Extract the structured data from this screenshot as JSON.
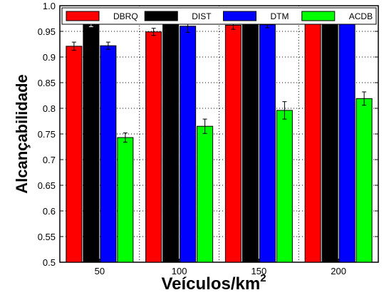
{
  "chart_data": {
    "type": "bar",
    "categories": [
      "50",
      "100",
      "150",
      "200"
    ],
    "series": [
      {
        "name": "DBRQ",
        "color": "#ff0000",
        "values": [
          0.921,
          0.949,
          0.962,
          0.974
        ],
        "errors": [
          0.008,
          0.007,
          0.008,
          0.008
        ]
      },
      {
        "name": "DIST",
        "color": "#000000",
        "values": [
          0.969,
          0.975,
          0.977,
          0.98
        ],
        "errors": [
          0.01,
          0.01,
          0.008,
          0.01
        ]
      },
      {
        "name": "DTM",
        "color": "#0000ff",
        "values": [
          0.922,
          0.96,
          0.963,
          0.981
        ],
        "errors": [
          0.007,
          0.012,
          0.006,
          0.01
        ]
      },
      {
        "name": "ACDB",
        "color": "#00ff00",
        "values": [
          0.743,
          0.765,
          0.796,
          0.819
        ],
        "errors": [
          0.009,
          0.014,
          0.017,
          0.013
        ]
      }
    ],
    "ylim": [
      0.5,
      1.0
    ],
    "yticks": [
      "0.5",
      "0.55",
      "0.6",
      "0.65",
      "0.7",
      "0.75",
      "0.8",
      "0.85",
      "0.9",
      "0.95",
      "1.0"
    ],
    "xlabel": "Veículos/km",
    "xlabel_sup": "2",
    "ylabel": "Alcançabilidade",
    "grid": "dotted",
    "legend_position": "top"
  }
}
